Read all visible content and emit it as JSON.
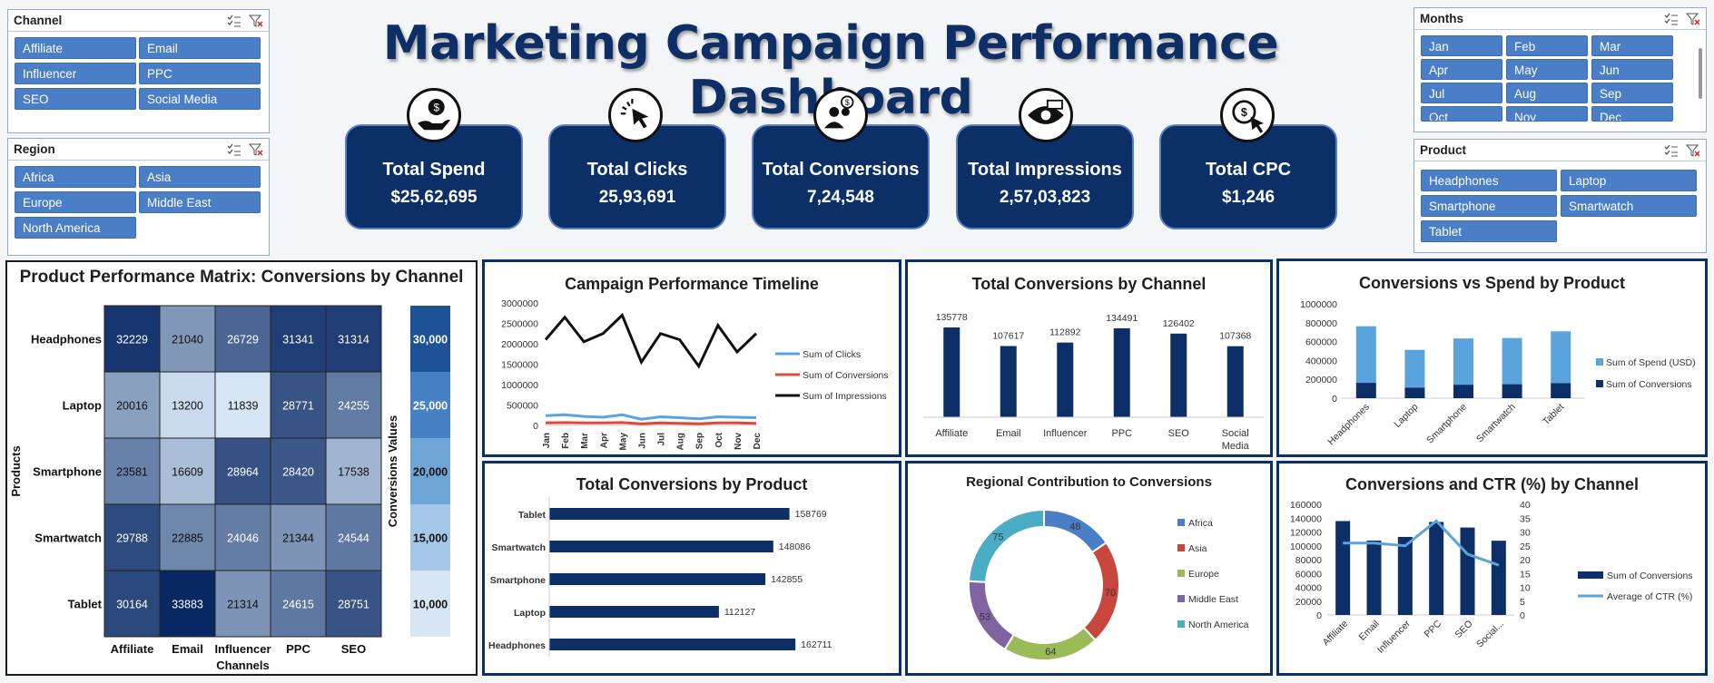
{
  "header": {
    "title": "Marketing Campaign Performance Dashboard"
  },
  "slicers": {
    "channel": {
      "title": "Channel",
      "items": [
        "Affiliate",
        "Email",
        "Influencer",
        "PPC",
        "SEO",
        "Social Media"
      ]
    },
    "region": {
      "title": "Region",
      "items": [
        "Africa",
        "Asia",
        "Europe",
        "Middle East",
        "North America"
      ]
    },
    "months": {
      "title": "Months",
      "items": [
        "Jan",
        "Feb",
        "Mar",
        "Apr",
        "May",
        "Jun",
        "Jul",
        "Aug",
        "Sep",
        "Oct",
        "Nov",
        "Dec"
      ]
    },
    "product": {
      "title": "Product",
      "items": [
        "Headphones",
        "Laptop",
        "Smartphone",
        "Smartwatch",
        "Tablet"
      ]
    }
  },
  "kpis": [
    {
      "label": "Total Spend",
      "value": "$25,62,695",
      "icon": "money-hand-icon"
    },
    {
      "label": "Total Clicks",
      "value": "25,93,691",
      "icon": "cursor-click-icon"
    },
    {
      "label": "Total Conversions",
      "value": "7,24,548",
      "icon": "user-dollar-icon"
    },
    {
      "label": "Total Impressions",
      "value": "2,57,03,823",
      "icon": "eye-screen-icon"
    },
    {
      "label": "Total CPC",
      "value": "$1,246",
      "icon": "coin-cursor-icon"
    }
  ],
  "heatmap": {
    "title": "Product Performance Matrix: Conversions by Channel",
    "ylabel": "Products",
    "xlabel": "Channels",
    "scale_label": "Conversions Values",
    "rows": [
      "Headphones",
      "Laptop",
      "Smartphone",
      "Smartwatch",
      "Tablet"
    ],
    "cols": [
      "Affiliate",
      "Email",
      "Influencer",
      "PPC",
      "SEO"
    ],
    "values": [
      [
        32229,
        21040,
        26729,
        31341,
        31314
      ],
      [
        20016,
        13200,
        11839,
        28771,
        24255
      ],
      [
        23581,
        16609,
        28964,
        28420,
        17538
      ],
      [
        29788,
        22885,
        24046,
        21344,
        24544
      ],
      [
        30164,
        33883,
        21314,
        24615,
        28751
      ]
    ],
    "scale": [
      "30,000",
      "25,000",
      "20,000",
      "15,000",
      "10,000"
    ]
  },
  "chart_data": [
    {
      "type": "line",
      "title": "Campaign Performance Timeline",
      "x": [
        "Jan",
        "Feb",
        "Mar",
        "Apr",
        "May",
        "Jun",
        "Jul",
        "Aug",
        "Sep",
        "Oct",
        "Nov",
        "Dec"
      ],
      "ylim": [
        0,
        3000000
      ],
      "yticks": [
        "3000000",
        "2500000",
        "2000000",
        "1500000",
        "1000000",
        "500000",
        "0"
      ],
      "series": [
        {
          "name": "Sum of Clicks",
          "color": "#5ba3dc",
          "values": [
            240000,
            260000,
            220000,
            200000,
            260000,
            150000,
            210000,
            190000,
            160000,
            210000,
            200000,
            190000
          ]
        },
        {
          "name": "Sum of Conversions",
          "color": "#e0483a",
          "values": [
            60000,
            70000,
            60000,
            60000,
            70000,
            40000,
            60000,
            50000,
            40000,
            60000,
            60000,
            50000
          ]
        },
        {
          "name": "Sum of Impressions",
          "color": "#111111",
          "values": [
            2100000,
            2650000,
            2050000,
            2250000,
            2700000,
            1550000,
            2250000,
            2100000,
            1450000,
            2450000,
            1800000,
            2250000
          ]
        }
      ]
    },
    {
      "type": "bar",
      "title": "Total Conversions by Channel",
      "categories": [
        "Affiliate",
        "Email",
        "Influencer",
        "PPC",
        "SEO",
        "Social Media"
      ],
      "values": [
        135778,
        107617,
        112892,
        134491,
        126402,
        107368
      ]
    },
    {
      "type": "bar",
      "title": "Conversions vs Spend by Product",
      "categories": [
        "Headphones",
        "Laptop",
        "Smartphone",
        "Smartwatch",
        "Tablet"
      ],
      "ylim": [
        0,
        1000000
      ],
      "yticks": [
        "1000000",
        "800000",
        "600000",
        "400000",
        "200000",
        "0"
      ],
      "series": [
        {
          "name": "Sum of Spend (USD)",
          "color": "#5ba3dc",
          "values": [
            600000,
            400000,
            490000,
            490000,
            550000
          ]
        },
        {
          "name": "Sum of Conversions",
          "color": "#0b2f66",
          "values": [
            162711,
            112127,
            142855,
            148086,
            158769
          ]
        }
      ]
    },
    {
      "type": "bar",
      "title": "Total Conversions by Product",
      "categories": [
        "Tablet",
        "Smartwatch",
        "Smartphone",
        "Laptop",
        "Headphones"
      ],
      "values": [
        158769,
        148086,
        142855,
        112127,
        162711
      ]
    },
    {
      "type": "pie",
      "title": "Regional Contribution to Conversions",
      "categories": [
        "Africa",
        "Asia",
        "Europe",
        "Middle East",
        "North America"
      ],
      "values": [
        48,
        70,
        64,
        53,
        75
      ],
      "colors": [
        "#4a7ec7",
        "#c9463d",
        "#9bbb59",
        "#8064a2",
        "#4bacc6"
      ]
    },
    {
      "type": "bar",
      "title": "Conversions and CTR (%) by Channel",
      "categories": [
        "Affiliate",
        "Email",
        "Influencer",
        "PPC",
        "SEO",
        "Social..."
      ],
      "yticks": [
        "160000",
        "140000",
        "120000",
        "100000",
        "80000",
        "60000",
        "40000",
        "20000",
        "0"
      ],
      "y2ticks": [
        "40",
        "35",
        "30",
        "25",
        "20",
        "15",
        "10",
        "5",
        "0"
      ],
      "series": [
        {
          "name": "Sum of Conversions",
          "color": "#0b2f66",
          "values": [
            135778,
            107617,
            112892,
            134491,
            126402,
            107368
          ]
        },
        {
          "name": "Average of CTR (%)",
          "color": "#5ba3dc",
          "values": [
            26,
            26,
            25,
            34,
            22,
            18
          ]
        }
      ]
    }
  ]
}
